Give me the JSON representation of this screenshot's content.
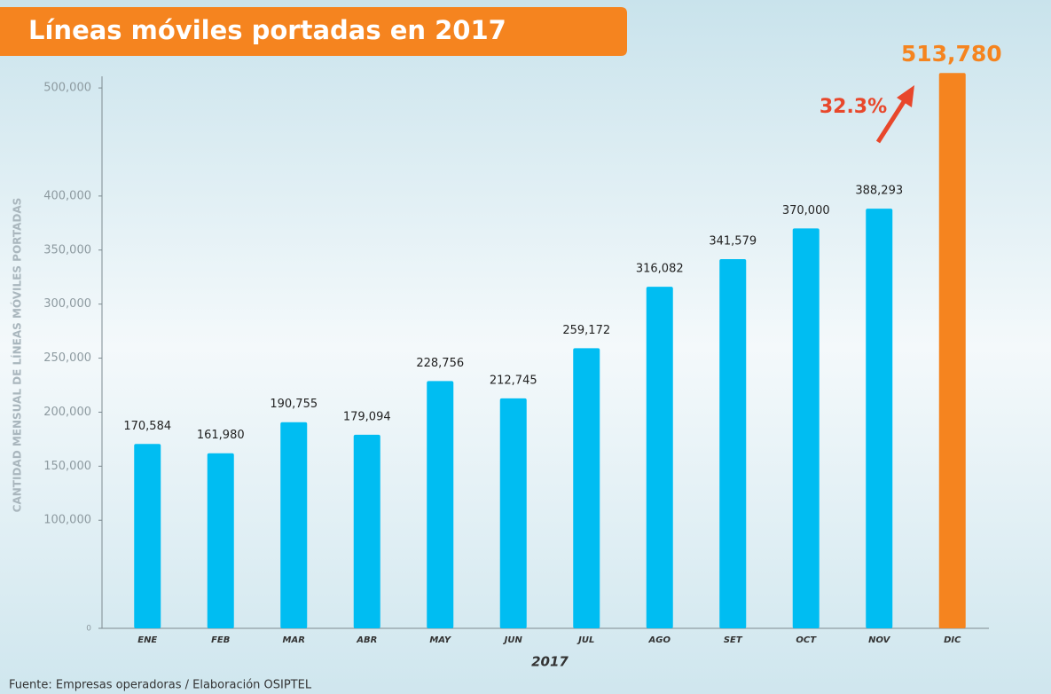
{
  "chart_data": {
    "type": "bar",
    "title": "Líneas móviles portadas en 2017",
    "y_label": "CANTIDAD MENSUAL DE LÍNEAS MÓVILES PORTADAS",
    "x_label": "2017",
    "source": "Fuente: Empresas operadoras / Elaboración OSIPTEL",
    "annotation": "32.3%",
    "categories": [
      "ENE",
      "FEB",
      "MAR",
      "ABR",
      "MAY",
      "JUN",
      "JUL",
      "AGO",
      "SET",
      "OCT",
      "NOV",
      "DIC"
    ],
    "values": [
      170584,
      161980,
      190755,
      179094,
      228756,
      212745,
      259172,
      316082,
      341579,
      370000,
      388293,
      513780
    ],
    "value_labels": [
      "170,584",
      "161,980",
      "190,755",
      "179,094",
      "228,756",
      "212,745",
      "259,172",
      "316,082",
      "341,579",
      "370,000",
      "388,293",
      "513,780"
    ],
    "colors": [
      "#00bdf2",
      "#00bdf2",
      "#00bdf2",
      "#00bdf2",
      "#00bdf2",
      "#00bdf2",
      "#00bdf2",
      "#00bdf2",
      "#00bdf2",
      "#00bdf2",
      "#00bdf2",
      "#f5841f"
    ],
    "ylim": [
      0,
      505000
    ],
    "yticks": [
      0,
      {
        "value": 100000,
        "label": "100,000"
      },
      {
        "value": 150000,
        "label": "150,000"
      },
      {
        "value": 200000,
        "label": "200,000"
      },
      {
        "value": 250000,
        "label": "250,000"
      },
      {
        "value": 300000,
        "label": "300,000"
      },
      {
        "value": 350000,
        "label": "350,000"
      },
      {
        "value": 400000,
        "label": "400,000"
      },
      {
        "value": 500000,
        "label": "500,000"
      }
    ]
  }
}
